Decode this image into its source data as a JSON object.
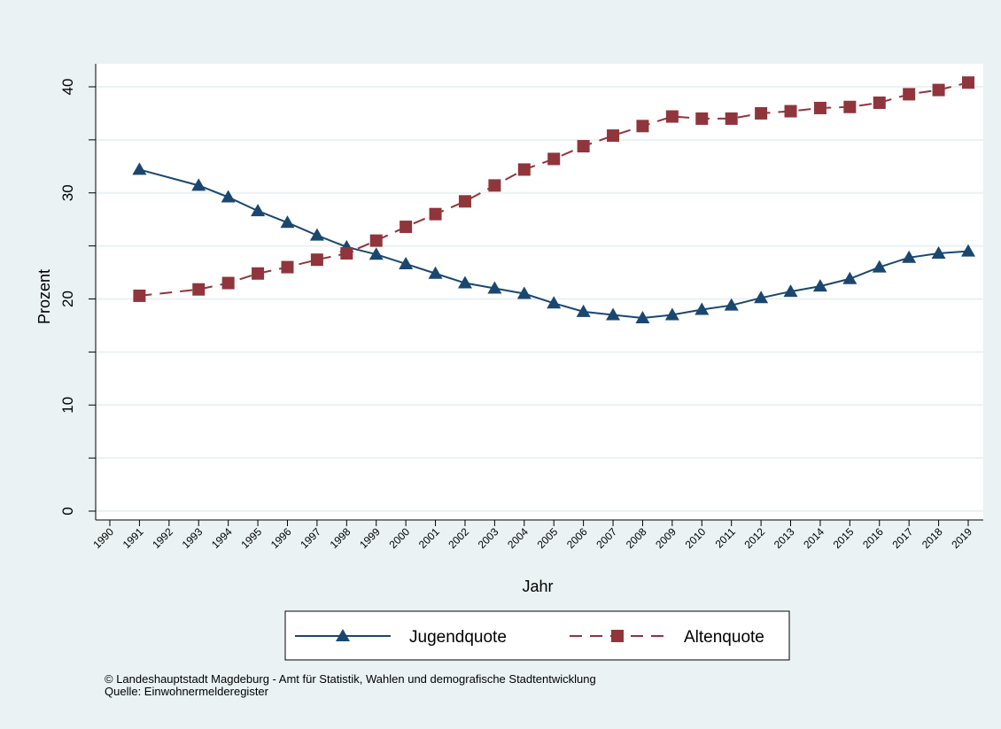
{
  "chart_data": {
    "type": "line",
    "xlabel": "Jahr",
    "ylabel": "Prozent",
    "x_ticks": [
      "1990",
      "1991",
      "1992",
      "1993",
      "1994",
      "1995",
      "1996",
      "1997",
      "1998",
      "1999",
      "2000",
      "2001",
      "2002",
      "2003",
      "2004",
      "2005",
      "2006",
      "2007",
      "2008",
      "2009",
      "2010",
      "2011",
      "2012",
      "2013",
      "2014",
      "2015",
      "2016",
      "2017",
      "2018",
      "2019"
    ],
    "y_ticks": [
      0,
      10,
      20,
      30,
      40
    ],
    "xlim": [
      1990,
      2019
    ],
    "ylim": [
      0,
      40
    ],
    "grid": true,
    "legend_position": "bottom",
    "series": [
      {
        "name": "Jugendquote",
        "color": "#1a476f",
        "style": "solid",
        "marker": "triangle",
        "x": [
          1991,
          1993,
          1994,
          1995,
          1996,
          1997,
          1998,
          1999,
          2000,
          2001,
          2002,
          2003,
          2004,
          2005,
          2006,
          2007,
          2008,
          2009,
          2010,
          2011,
          2012,
          2013,
          2014,
          2015,
          2016,
          2017,
          2018,
          2019
        ],
        "y": [
          32.2,
          30.7,
          29.6,
          28.3,
          27.2,
          26.0,
          24.9,
          24.2,
          23.3,
          22.4,
          21.5,
          21.0,
          20.5,
          19.6,
          18.8,
          18.5,
          18.2,
          18.5,
          19.0,
          19.4,
          20.1,
          20.7,
          21.2,
          21.9,
          23.0,
          23.9,
          24.3,
          24.5
        ]
      },
      {
        "name": "Altenquote",
        "color": "#90353b",
        "style": "dashed",
        "marker": "square",
        "x": [
          1991,
          1993,
          1994,
          1995,
          1996,
          1997,
          1998,
          1999,
          2000,
          2001,
          2002,
          2003,
          2004,
          2005,
          2006,
          2007,
          2008,
          2009,
          2010,
          2011,
          2012,
          2013,
          2014,
          2015,
          2016,
          2017,
          2018,
          2019
        ],
        "y": [
          20.3,
          20.9,
          21.5,
          22.4,
          23.0,
          23.7,
          24.3,
          25.5,
          26.8,
          28.0,
          29.2,
          30.7,
          32.2,
          33.2,
          34.4,
          35.4,
          36.3,
          37.2,
          37.0,
          37.0,
          37.5,
          37.7,
          38.0,
          38.1,
          38.5,
          39.3,
          39.7,
          40.4
        ]
      }
    ]
  },
  "footer": {
    "copyright": "©  Landeshauptstadt Magdeburg - Amt für Statistik, Wahlen und demografische Stadtentwicklung",
    "source": "Quelle: Einwohnermelderegister"
  }
}
